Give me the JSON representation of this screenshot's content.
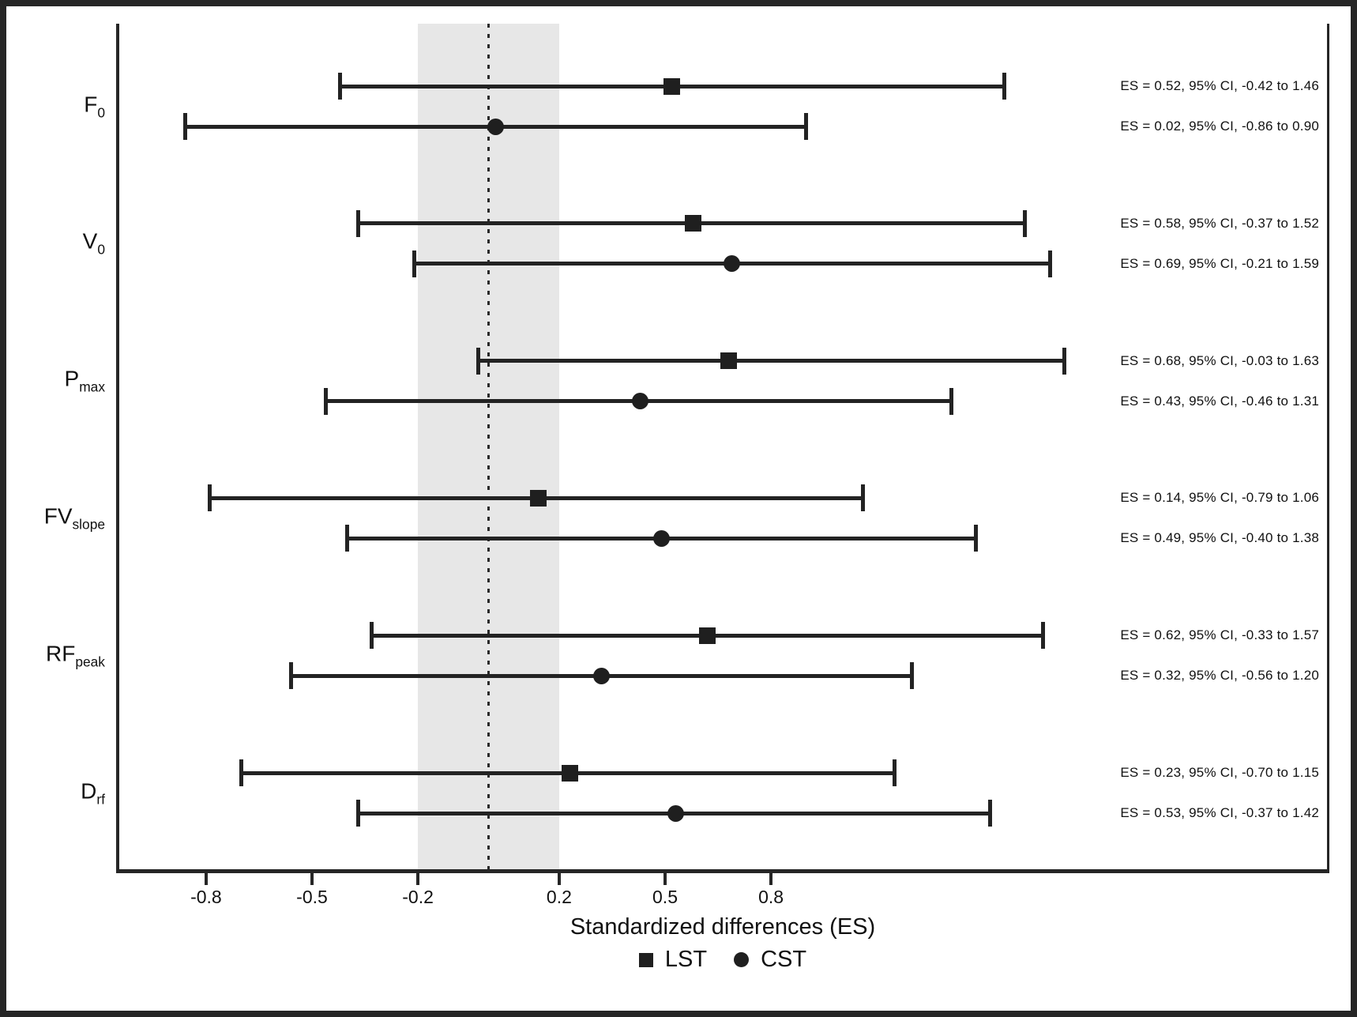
{
  "chart_data": {
    "type": "scatter",
    "variant": "forest_plot",
    "xlabel": "Standardized differences (ES)",
    "x_ticks": [
      -0.8,
      -0.5,
      -0.2,
      0.2,
      0.5,
      0.8
    ],
    "x_tick_labels": [
      "-0.8",
      "-0.5",
      "-0.2",
      "0.2",
      "0.5",
      "0.8"
    ],
    "xlim": [
      -1.05,
      2.4
    ],
    "reference_line_x": 0,
    "trivial_effect_band": [
      -0.2,
      0.2
    ],
    "grid": false,
    "legend_position": "bottom",
    "legend": [
      {
        "marker": "square",
        "label": "LST"
      },
      {
        "marker": "circle",
        "label": "CST"
      }
    ],
    "colors": {
      "ink": "#222222",
      "band": "#e7e7e7"
    },
    "groups": [
      {
        "label_main": "F",
        "label_sub": "0",
        "rows": [
          {
            "series": "LST",
            "marker": "square",
            "es": 0.52,
            "ci_low": -0.42,
            "ci_high": 1.46,
            "annotation": "ES = 0.52, 95% CI, -0.42 to 1.46"
          },
          {
            "series": "CST",
            "marker": "circle",
            "es": 0.02,
            "ci_low": -0.86,
            "ci_high": 0.9,
            "annotation": "ES = 0.02, 95% CI, -0.86 to 0.90"
          }
        ]
      },
      {
        "label_main": "V",
        "label_sub": "0",
        "rows": [
          {
            "series": "LST",
            "marker": "square",
            "es": 0.58,
            "ci_low": -0.37,
            "ci_high": 1.52,
            "annotation": "ES = 0.58, 95% CI, -0.37 to 1.52"
          },
          {
            "series": "CST",
            "marker": "circle",
            "es": 0.69,
            "ci_low": -0.21,
            "ci_high": 1.59,
            "annotation": "ES = 0.69, 95% CI, -0.21 to 1.59"
          }
        ]
      },
      {
        "label_main": "P",
        "label_sub": "max",
        "rows": [
          {
            "series": "LST",
            "marker": "square",
            "es": 0.68,
            "ci_low": -0.03,
            "ci_high": 1.63,
            "annotation": "ES = 0.68, 95% CI, -0.03 to 1.63"
          },
          {
            "series": "CST",
            "marker": "circle",
            "es": 0.43,
            "ci_low": -0.46,
            "ci_high": 1.31,
            "annotation": "ES = 0.43, 95% CI, -0.46 to 1.31"
          }
        ]
      },
      {
        "label_main": "FV",
        "label_sub": "slope",
        "rows": [
          {
            "series": "LST",
            "marker": "square",
            "es": 0.14,
            "ci_low": -0.79,
            "ci_high": 1.06,
            "annotation": "ES = 0.14, 95% CI, -0.79 to 1.06"
          },
          {
            "series": "CST",
            "marker": "circle",
            "es": 0.49,
            "ci_low": -0.4,
            "ci_high": 1.38,
            "annotation": "ES = 0.49, 95% CI, -0.40 to 1.38"
          }
        ]
      },
      {
        "label_main": "RF",
        "label_sub": "peak",
        "rows": [
          {
            "series": "LST",
            "marker": "square",
            "es": 0.62,
            "ci_low": -0.33,
            "ci_high": 1.57,
            "annotation": "ES = 0.62, 95% CI, -0.33 to 1.57"
          },
          {
            "series": "CST",
            "marker": "circle",
            "es": 0.32,
            "ci_low": -0.56,
            "ci_high": 1.2,
            "annotation": "ES = 0.32, 95% CI, -0.56 to 1.20"
          }
        ]
      },
      {
        "label_main": "D",
        "label_sub": "rf",
        "rows": [
          {
            "series": "LST",
            "marker": "square",
            "es": 0.23,
            "ci_low": -0.7,
            "ci_high": 1.15,
            "annotation": "ES = 0.23, 95% CI, -0.70 to 1.15"
          },
          {
            "series": "CST",
            "marker": "circle",
            "es": 0.53,
            "ci_low": -0.37,
            "ci_high": 1.42,
            "annotation": "ES = 0.53, 95% CI, -0.37 to 1.42"
          }
        ]
      }
    ]
  }
}
